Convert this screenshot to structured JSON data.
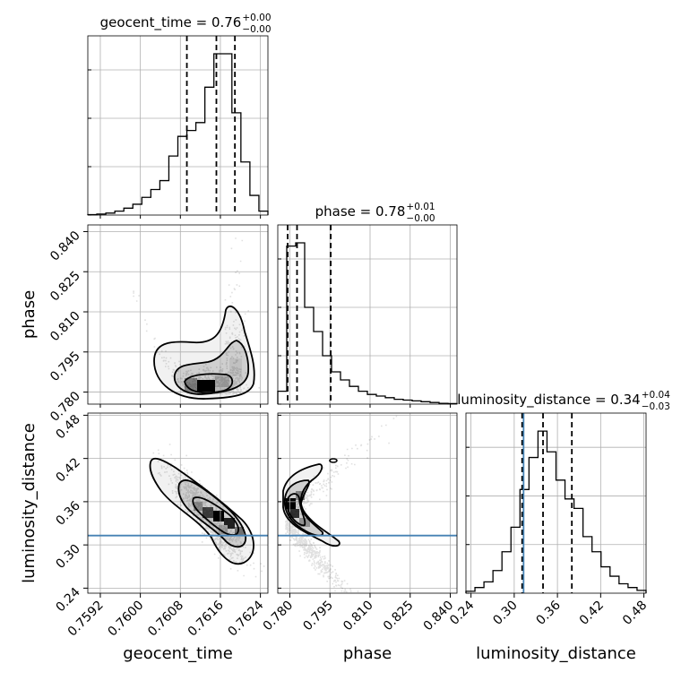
{
  "chart_data": {
    "type": "corner",
    "parameters": [
      "geocent_time",
      "phase",
      "luminosity_distance"
    ],
    "titles": [
      {
        "text": "geocent_time = 0.76",
        "sup": "+0.00",
        "sub": "−0.00"
      },
      {
        "text": "phase = 0.78",
        "sup": "+0.01",
        "sub": "−0.00"
      },
      {
        "text": "luminosity_distance = 0.34",
        "sup": "+0.04",
        "sub": "−0.03"
      }
    ],
    "ranges": [
      [
        0.75895,
        0.76255
      ],
      [
        0.7755,
        0.8425
      ],
      [
        0.233,
        0.483
      ]
    ],
    "ticks": [
      {
        "values": [
          0.7592,
          0.76,
          0.7608,
          0.7616,
          0.7624
        ],
        "labels": [
          "0.7592",
          "0.7600",
          "0.7608",
          "0.7616",
          "0.7624"
        ]
      },
      {
        "values": [
          0.78,
          0.795,
          0.81,
          0.825,
          0.84
        ],
        "labels": [
          "0.780",
          "0.795",
          "0.810",
          "0.825",
          "0.840"
        ]
      },
      {
        "values": [
          0.24,
          0.3,
          0.36,
          0.42,
          0.48
        ],
        "labels": [
          "0.24",
          "0.30",
          "0.36",
          "0.42",
          "0.48"
        ]
      }
    ],
    "histograms": [
      {
        "param": "geocent_time",
        "bins": 20,
        "counts": [
          0.2,
          0.5,
          1,
          2,
          3.5,
          5.5,
          9,
          13,
          17.5,
          30,
          40,
          43,
          47,
          65,
          82,
          82,
          52,
          27,
          10,
          2
        ],
        "quantiles": [
          0.76093,
          0.76152,
          0.76189
        ]
      },
      {
        "param": "phase",
        "bins": 20,
        "counts": [
          8,
          98,
          100,
          60,
          45,
          30,
          20,
          15,
          11,
          8,
          6,
          5,
          4,
          3,
          2.5,
          2,
          1.5,
          1,
          0.5,
          0.3
        ],
        "quantiles": [
          0.7792,
          0.7827,
          0.7953
        ]
      },
      {
        "param": "luminosity_distance",
        "bins": 20,
        "counts": [
          1,
          3,
          6,
          12,
          22,
          35,
          55,
          72,
          86,
          75,
          60,
          50,
          45,
          30,
          22,
          14,
          9,
          5,
          3,
          1.5
        ],
        "quantiles": [
          0.311,
          0.34,
          0.38
        ]
      }
    ],
    "truths": {
      "luminosity_distance": 0.313
    },
    "levels": [
      "1-sigma",
      "2-sigma",
      "3-sigma"
    ],
    "grid": true
  }
}
